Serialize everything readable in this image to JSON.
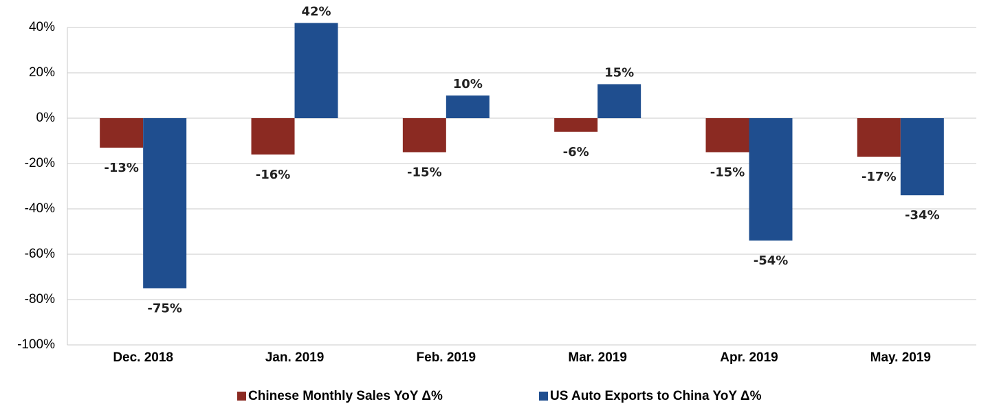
{
  "chart_data": {
    "type": "bar",
    "categories": [
      "Dec. 2018",
      "Jan. 2019",
      "Feb. 2019",
      "Mar. 2019",
      "Apr. 2019",
      "May. 2019"
    ],
    "series": [
      {
        "name": "Chinese Monthly Sales YoY Δ%",
        "color": "#8b2a22",
        "values": [
          -13,
          -16,
          -15,
          -6,
          -15,
          -17
        ],
        "value_labels": [
          "-13%",
          "-16%",
          "-15%",
          "-6%",
          "-15%",
          "-17%"
        ]
      },
      {
        "name": "US Auto Exports to China YoY Δ%",
        "color": "#1f4e8f",
        "values": [
          -75,
          42,
          10,
          15,
          -54,
          -34
        ],
        "value_labels": [
          "-75%",
          "42%",
          "10%",
          "15%",
          "-54%",
          "-34%"
        ]
      }
    ],
    "ylim": [
      -100,
      50
    ],
    "yticks": [
      {
        "value": -100,
        "label": "-100%"
      },
      {
        "value": -80,
        "label": "-80%"
      },
      {
        "value": -60,
        "label": "-60%"
      },
      {
        "value": -40,
        "label": "-40%"
      },
      {
        "value": -20,
        "label": "-20%"
      },
      {
        "value": 0,
        "label": "0%"
      },
      {
        "value": 20,
        "label": "20%"
      },
      {
        "value": 40,
        "label": "40%"
      }
    ],
    "grid": true,
    "legend": "bottom"
  }
}
